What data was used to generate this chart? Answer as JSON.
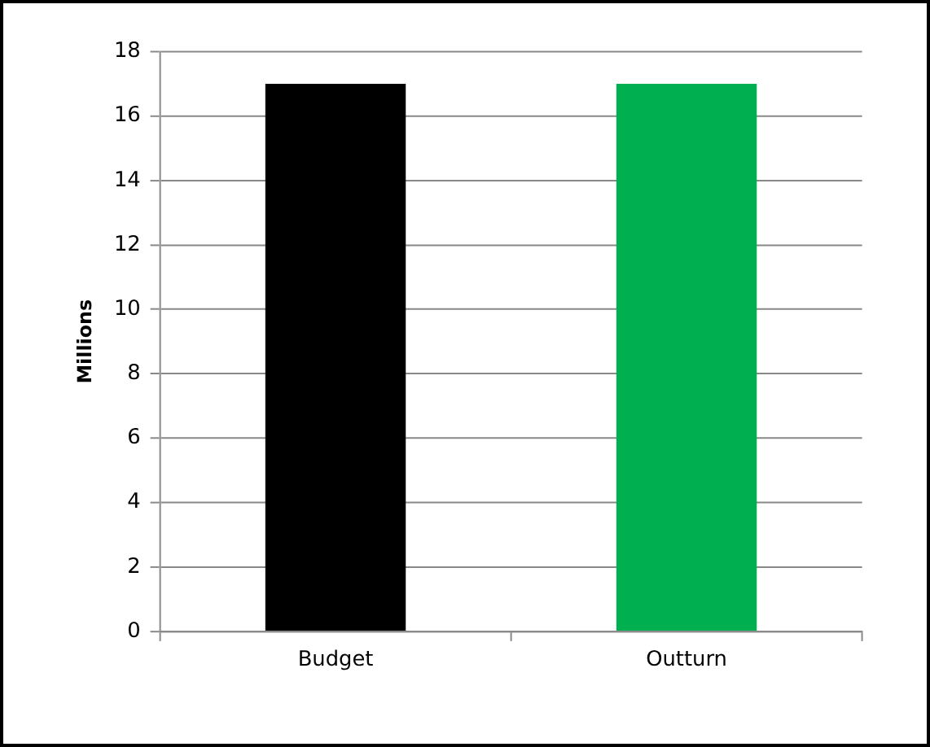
{
  "chart_data": {
    "type": "bar",
    "ylabel": "Millions",
    "categories": [
      "Budget",
      "Outturn"
    ],
    "values": [
      17,
      17
    ],
    "colors": [
      "#000000",
      "#00b050"
    ],
    "ylim": [
      0,
      18
    ],
    "yticks": [
      0,
      2,
      4,
      6,
      8,
      10,
      12,
      14,
      16,
      18
    ],
    "grid": "y",
    "legend": false
  }
}
